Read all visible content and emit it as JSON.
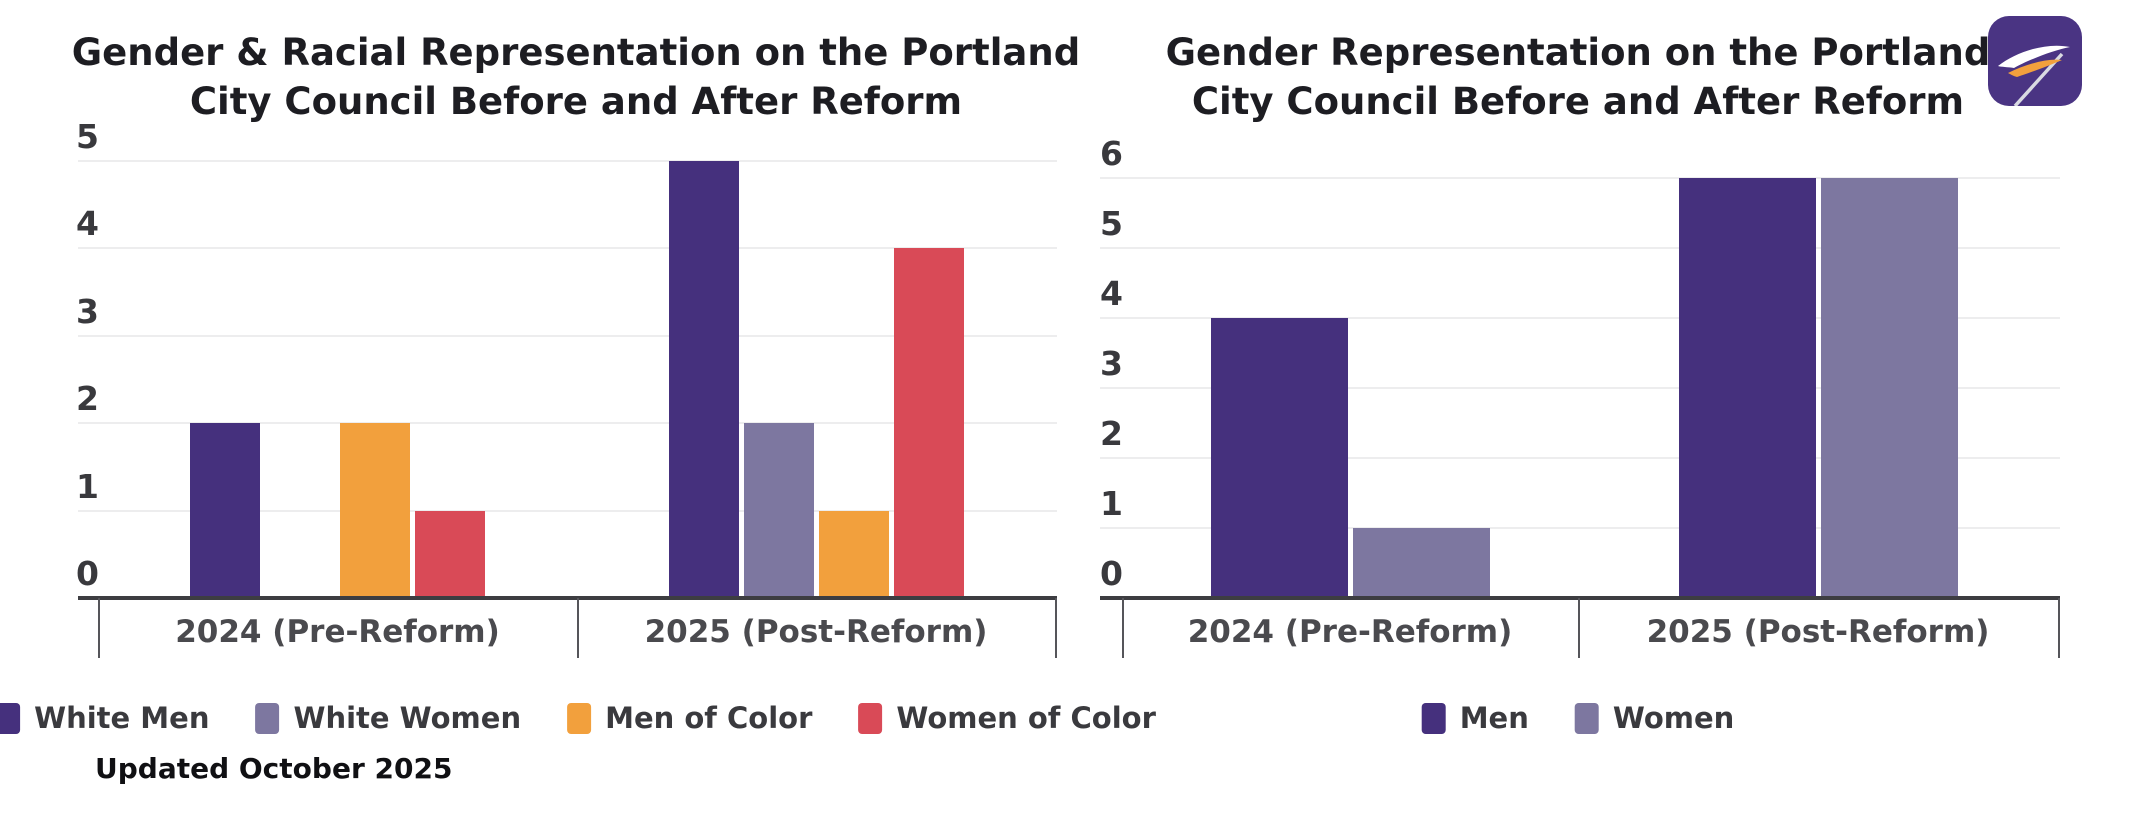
{
  "page": {
    "background": "#ffffff"
  },
  "footer": {
    "updated_text": "Updated October 2025"
  },
  "logo": {
    "name": "brand-logo",
    "bg_color": "#4A3483",
    "swoosh_white": "#ffffff",
    "swoosh_orange": "#F2A03D",
    "pole_color": "#d9dae2"
  },
  "colors": {
    "title_text": "#1d1d22",
    "ytick_text": "#39393d",
    "category_text": "#4a4a4e",
    "gridline": "#ededee",
    "axis_line": "#3d3d41",
    "series_dark_purple": "#45307D",
    "series_light_purple": "#7D77A0",
    "series_orange": "#F2A03D",
    "series_red": "#D94A57"
  },
  "chart_data": [
    {
      "type": "bar",
      "title": "Gender & Racial Representation on the Portland City Council Before and After Reform",
      "title_lines": [
        "Gender & Racial Representation on the Portland",
        "City Council Before and After Reform"
      ],
      "categories": [
        "2024 (Pre-Reform)",
        "2025 (Post-Reform)"
      ],
      "series": [
        {
          "name": "White Men",
          "color": "#45307D",
          "values": [
            2,
            5
          ]
        },
        {
          "name": "White Women",
          "color": "#7D77A0",
          "values": [
            0,
            2
          ]
        },
        {
          "name": "Men of Color",
          "color": "#F2A03D",
          "values": [
            2,
            1
          ]
        },
        {
          "name": "Women of Color",
          "color": "#D94A57",
          "values": [
            1,
            4
          ]
        }
      ],
      "xlabel": "",
      "ylabel": "",
      "ylim": [
        0,
        5
      ],
      "yticks": [
        0,
        1,
        2,
        3,
        4,
        5
      ],
      "grid": true,
      "legend_position": "bottom"
    },
    {
      "type": "bar",
      "title": "Gender Representation on the Portland City Council Before and After Reform",
      "title_lines": [
        "Gender Representation on the Portland",
        "City Council Before and After Reform"
      ],
      "categories": [
        "2024 (Pre-Reform)",
        "2025 (Post-Reform)"
      ],
      "series": [
        {
          "name": "Men",
          "color": "#45307D",
          "values": [
            4,
            6
          ]
        },
        {
          "name": "Women",
          "color": "#7D77A0",
          "values": [
            1,
            6
          ]
        }
      ],
      "xlabel": "",
      "ylabel": "",
      "ylim": [
        0,
        6
      ],
      "yticks": [
        0,
        1,
        2,
        3,
        4,
        5,
        6
      ],
      "grid": true,
      "legend_position": "bottom"
    }
  ]
}
